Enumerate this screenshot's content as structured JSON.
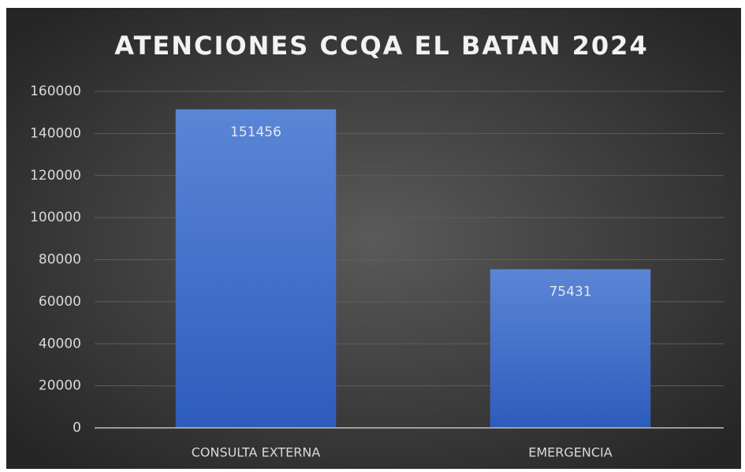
{
  "chart_data": {
    "type": "bar",
    "title": "ATENCIONES CCQA EL BATAN 2024",
    "categories": [
      "CONSULTA EXTERNA",
      "EMERGENCIA"
    ],
    "values": [
      151456,
      75431
    ],
    "color": "#4472c4",
    "ylim": [
      0,
      160000
    ],
    "yticks": [
      0,
      20000,
      40000,
      60000,
      80000,
      100000,
      120000,
      140000,
      160000
    ],
    "grid": true
  }
}
